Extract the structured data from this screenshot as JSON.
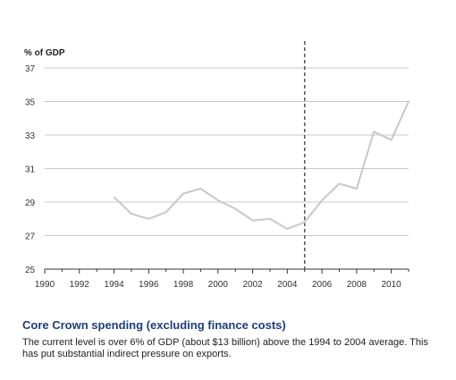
{
  "chart_data": {
    "type": "line",
    "ylabel": "% of GDP",
    "xlim": [
      1990,
      2011
    ],
    "ylim": [
      25,
      37
    ],
    "x_ticks": [
      "1990",
      "1992",
      "1994",
      "1996",
      "1998",
      "2000",
      "2002",
      "2004",
      "2006",
      "2008",
      "2010"
    ],
    "y_ticks": [
      "37",
      "35",
      "33",
      "31",
      "29",
      "27",
      "25"
    ],
    "grid": true,
    "forecast_divider_x": 2005,
    "series": [
      {
        "x": [
          1994,
          1995,
          1996,
          1997,
          1998,
          1999,
          2000,
          2001,
          2002,
          2003,
          2004,
          2005,
          2006,
          2007,
          2008,
          2009,
          2010,
          2011
        ],
        "values": [
          29.3,
          28.3,
          28.0,
          28.4,
          29.5,
          29.8,
          29.1,
          28.6,
          27.9,
          28.0,
          27.4,
          27.8,
          29.1,
          30.1,
          29.8,
          33.2,
          32.7,
          35.0
        ]
      }
    ],
    "colors": {
      "line": "#c8c8c8",
      "grid": "#c8c8c8",
      "axis": "#333333",
      "divider": "#555555"
    }
  },
  "caption": {
    "title": "Core Crown spending (excluding finance costs)",
    "body": "The current level is over 6% of GDP (about $13 billion) above the 1994 to 2004 average.  This has put substantial indirect pressure on exports."
  }
}
